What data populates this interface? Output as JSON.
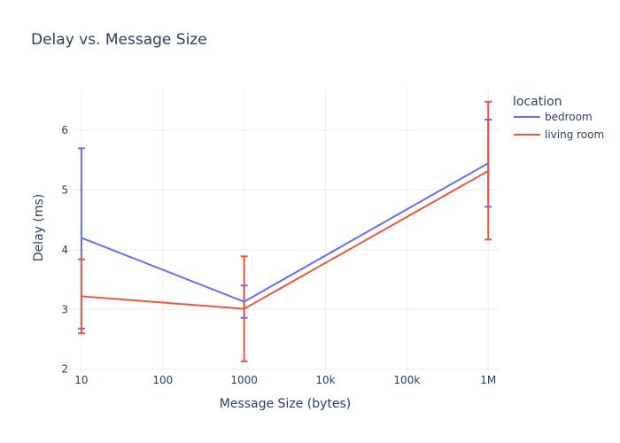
{
  "chart_data": {
    "type": "line",
    "title": "Delay vs. Message Size",
    "xlabel": "Message Size (bytes)",
    "ylabel": "Delay (ms)",
    "x_scale": "log",
    "x": [
      10,
      1000,
      1000000
    ],
    "x_tick_values": [
      10,
      100,
      1000,
      10000,
      100000,
      1000000
    ],
    "x_tick_labels": [
      "10",
      "100",
      "1000",
      "10k",
      "100k",
      "1M"
    ],
    "y_tick_values": [
      2,
      3,
      4,
      5,
      6
    ],
    "y_tick_labels": [
      "2",
      "3",
      "4",
      "5",
      "6"
    ],
    "ylim": [
      1.95,
      6.7
    ],
    "grid": true,
    "legend": {
      "title": "location",
      "placement": "top-right"
    },
    "series": [
      {
        "name": "bedroom",
        "color": "#636efa",
        "values": [
          4.2,
          3.13,
          5.45
        ],
        "error_low": [
          2.68,
          2.86,
          4.72
        ],
        "error_high": [
          5.7,
          3.4,
          6.18
        ]
      },
      {
        "name": "living room",
        "color": "#ef553b",
        "values": [
          3.22,
          3.01,
          5.32
        ],
        "error_low": [
          2.6,
          2.13,
          4.17
        ],
        "error_high": [
          3.84,
          3.89,
          6.48
        ]
      }
    ]
  }
}
